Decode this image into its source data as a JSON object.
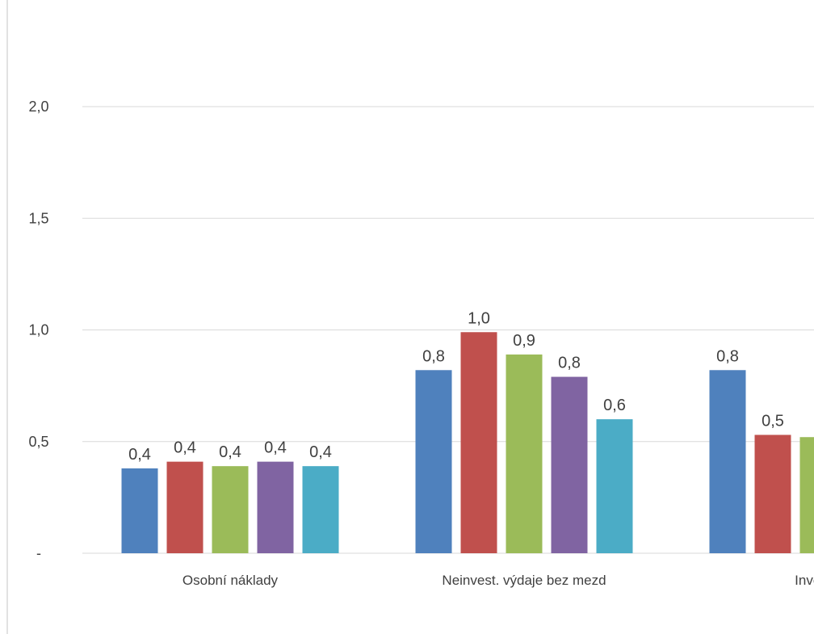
{
  "chart_data": {
    "type": "bar",
    "categories": [
      "Osobní náklady",
      "Neinvest. výdaje bez mezd",
      "Investič"
    ],
    "series": [
      {
        "color": "#4f81bd",
        "values": [
          0.38,
          0.82,
          0.82
        ],
        "labels": [
          "0,4",
          "0,8",
          "0,8"
        ]
      },
      {
        "color": "#c0504d",
        "values": [
          0.41,
          0.99,
          0.53
        ],
        "labels": [
          "0,4",
          "1,0",
          "0,5"
        ]
      },
      {
        "color": "#9bbb59",
        "values": [
          0.39,
          0.89,
          0.52
        ],
        "labels": [
          "0,4",
          "0,9",
          "("
        ]
      },
      {
        "color": "#8064a2",
        "values": [
          0.41,
          0.79,
          null
        ],
        "labels": [
          "0,4",
          "0,8",
          ""
        ]
      },
      {
        "color": "#4bacc6",
        "values": [
          0.39,
          0.6,
          null
        ],
        "labels": [
          "0,4",
          "0,6",
          ""
        ]
      }
    ],
    "ylim": [
      0,
      2.0
    ],
    "y_ticks": [
      {
        "value": 0,
        "label": "-"
      },
      {
        "value": 0.5,
        "label": "0,5"
      },
      {
        "value": 1.0,
        "label": "1,0"
      },
      {
        "value": 1.5,
        "label": "1,5"
      },
      {
        "value": 2.0,
        "label": "2,0"
      }
    ],
    "grid": true,
    "legend": "none"
  }
}
